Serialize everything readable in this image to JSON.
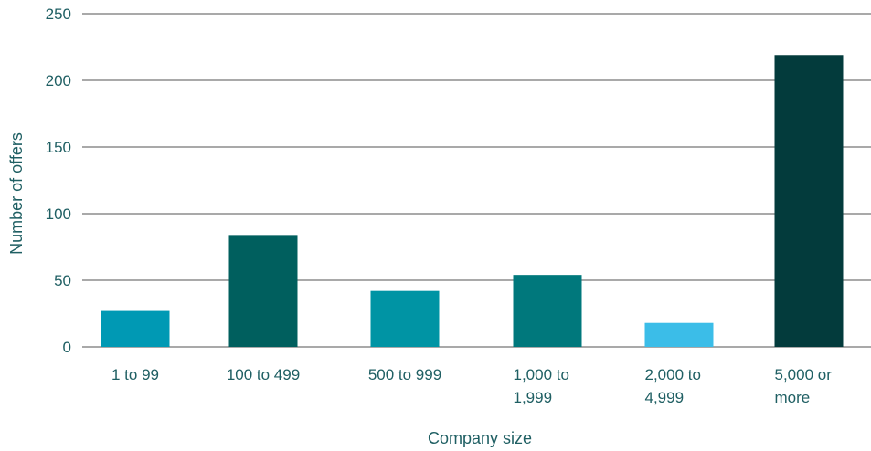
{
  "chart_data": {
    "type": "bar",
    "categories": [
      [
        "1 to 99"
      ],
      [
        "100 to 499"
      ],
      [
        "500 to 999"
      ],
      [
        "1,000 to",
        "1,999"
      ],
      [
        "2,000 to",
        "4,999"
      ],
      [
        "5,000 or",
        "more"
      ]
    ],
    "values": [
      27,
      84,
      42,
      54,
      18,
      219
    ],
    "colors": [
      "#0099b4",
      "#005f5e",
      "#0094a4",
      "#00787c",
      "#3bbde8",
      "#033b3c"
    ],
    "xlabel": "Company size",
    "ylabel": "Number of offers",
    "ylim": [
      0,
      250
    ],
    "yticks": [
      0,
      50,
      100,
      150,
      200,
      250
    ],
    "grid": true,
    "legend": "none"
  }
}
